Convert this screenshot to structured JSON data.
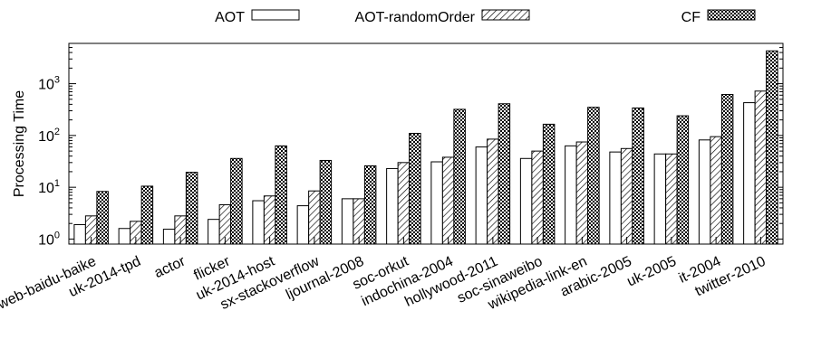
{
  "chart_data": {
    "type": "bar",
    "ylabel": "Processing Time",
    "yscale": "log",
    "ylim": [
      0.8,
      6000
    ],
    "y_ticks": [
      {
        "value": 1,
        "base": "10",
        "exp": "0"
      },
      {
        "value": 10,
        "base": "10",
        "exp": "1"
      },
      {
        "value": 100,
        "base": "10",
        "exp": "2"
      },
      {
        "value": 1000,
        "base": "10",
        "exp": "3"
      }
    ],
    "legend_position": "top",
    "categories": [
      "web-baidu-baike",
      "uk-2014-tpd",
      "actor",
      "flicker",
      "uk-2014-host",
      "sx-stackoverflow",
      "ljournal-2008",
      "soc-orkut",
      "indochina-2004",
      "hollywood-2011",
      "soc-sinaweibo",
      "wikipedia-link-en",
      "arabic-2005",
      "uk-2005",
      "it-2004",
      "twitter-2010"
    ],
    "series": [
      {
        "name": "AOT",
        "pattern": "plain",
        "values": [
          1.9,
          1.6,
          1.55,
          2.4,
          5.5,
          4.4,
          6.0,
          23,
          31,
          60,
          36,
          63,
          48,
          44,
          82,
          430
        ]
      },
      {
        "name": "AOT-randomOrder",
        "pattern": "hatch",
        "values": [
          2.8,
          2.2,
          2.8,
          4.6,
          6.8,
          8.5,
          6.0,
          30,
          38,
          85,
          50,
          75,
          56,
          44,
          95,
          720
        ]
      },
      {
        "name": "CF",
        "pattern": "crosshatch",
        "values": [
          8.3,
          10.5,
          19.5,
          36,
          63,
          33,
          26,
          110,
          320,
          410,
          165,
          350,
          340,
          240,
          620,
          4300
        ]
      }
    ],
    "colors": {
      "bar_fill": "#ffffff",
      "stroke": "#000000",
      "pattern_ink": "#000000"
    }
  }
}
